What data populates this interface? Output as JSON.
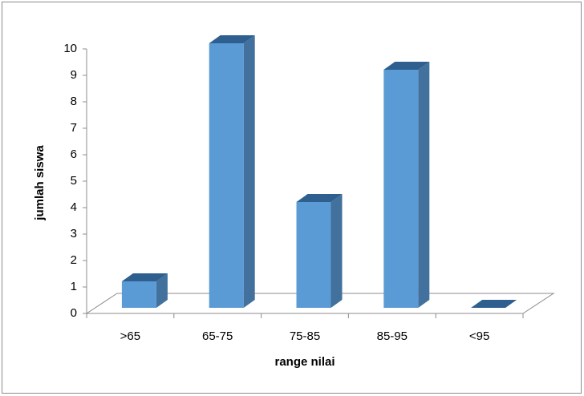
{
  "chart_data": {
    "type": "bar3d",
    "categories": [
      ">65",
      "65-75",
      "75-85",
      "85-95",
      "<95"
    ],
    "values": [
      1,
      10,
      4,
      9,
      0
    ],
    "color": "#5b9bd5",
    "ylim": [
      0,
      10
    ],
    "yticks": [
      0,
      1,
      2,
      3,
      4,
      5,
      6,
      7,
      8,
      9,
      10
    ],
    "x_label": "range nilai",
    "y_label": "jumlah siswa"
  }
}
